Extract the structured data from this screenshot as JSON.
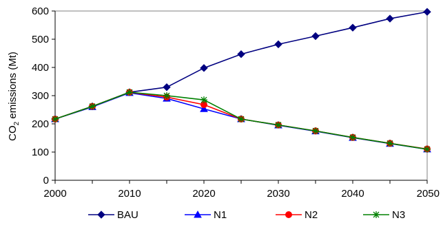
{
  "chart_data": {
    "type": "line",
    "title": "",
    "xlabel": "",
    "ylabel": "CO₂ emissions (Mt)",
    "ylabel_parts": [
      "CO",
      "2",
      " emissions (Mt)"
    ],
    "xlim": [
      2000,
      2050
    ],
    "ylim": [
      0,
      600
    ],
    "x": [
      2000,
      2005,
      2010,
      2015,
      2020,
      2025,
      2030,
      2035,
      2040,
      2045,
      2050
    ],
    "x_ticks": [
      "2000",
      "2010",
      "2020",
      "2030",
      "2040",
      "2050"
    ],
    "y_ticks": [
      "0",
      "100",
      "200",
      "300",
      "400",
      "500",
      "600"
    ],
    "grid": false,
    "legend_position": "bottom",
    "series": [
      {
        "name": "BAU",
        "marker": "diamond",
        "color": "#000080",
        "values": [
          217,
          262,
          312,
          330,
          398,
          447,
          482,
          511,
          541,
          573,
          597
        ]
      },
      {
        "name": "N1",
        "marker": "triangle",
        "color": "#0000ff",
        "values": [
          217,
          260,
          310,
          290,
          253,
          217,
          195,
          174,
          151,
          130,
          110
        ]
      },
      {
        "name": "N2",
        "marker": "circle",
        "color": "#ff0000",
        "values": [
          217,
          262,
          312,
          295,
          268,
          217,
          196,
          175,
          152,
          131,
          111
        ]
      },
      {
        "name": "N3",
        "marker": "star",
        "color": "#008000",
        "values": [
          217,
          262,
          312,
          300,
          285,
          217,
          196,
          175,
          152,
          131,
          110
        ]
      }
    ]
  }
}
